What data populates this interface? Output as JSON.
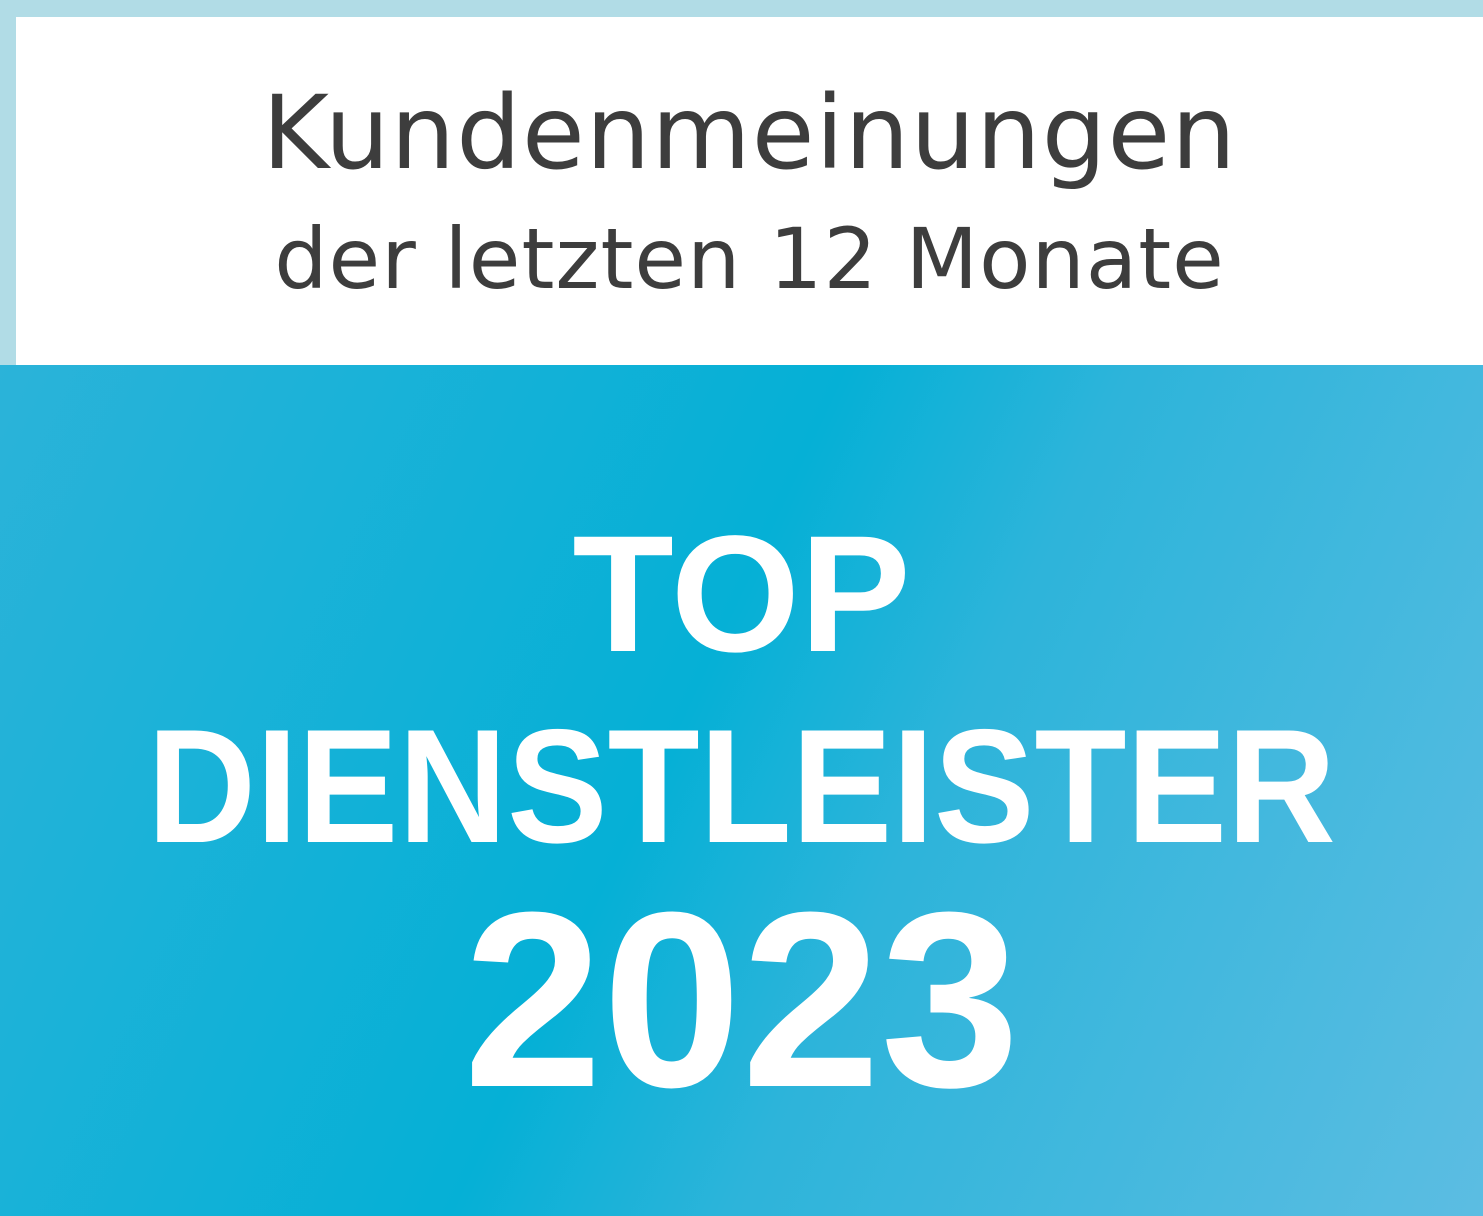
{
  "header": {
    "line1": "Kundenmeinungen",
    "line2": "der letzten 12 Monate"
  },
  "badge": {
    "line1": "TOP",
    "line2": "DIENSTLEISTER",
    "year": "2023"
  },
  "colors": {
    "frame": "#b1dce6",
    "accent_blue": "#05b0d6",
    "text_dark": "#3d3d3d",
    "text_light": "#ffffff"
  }
}
